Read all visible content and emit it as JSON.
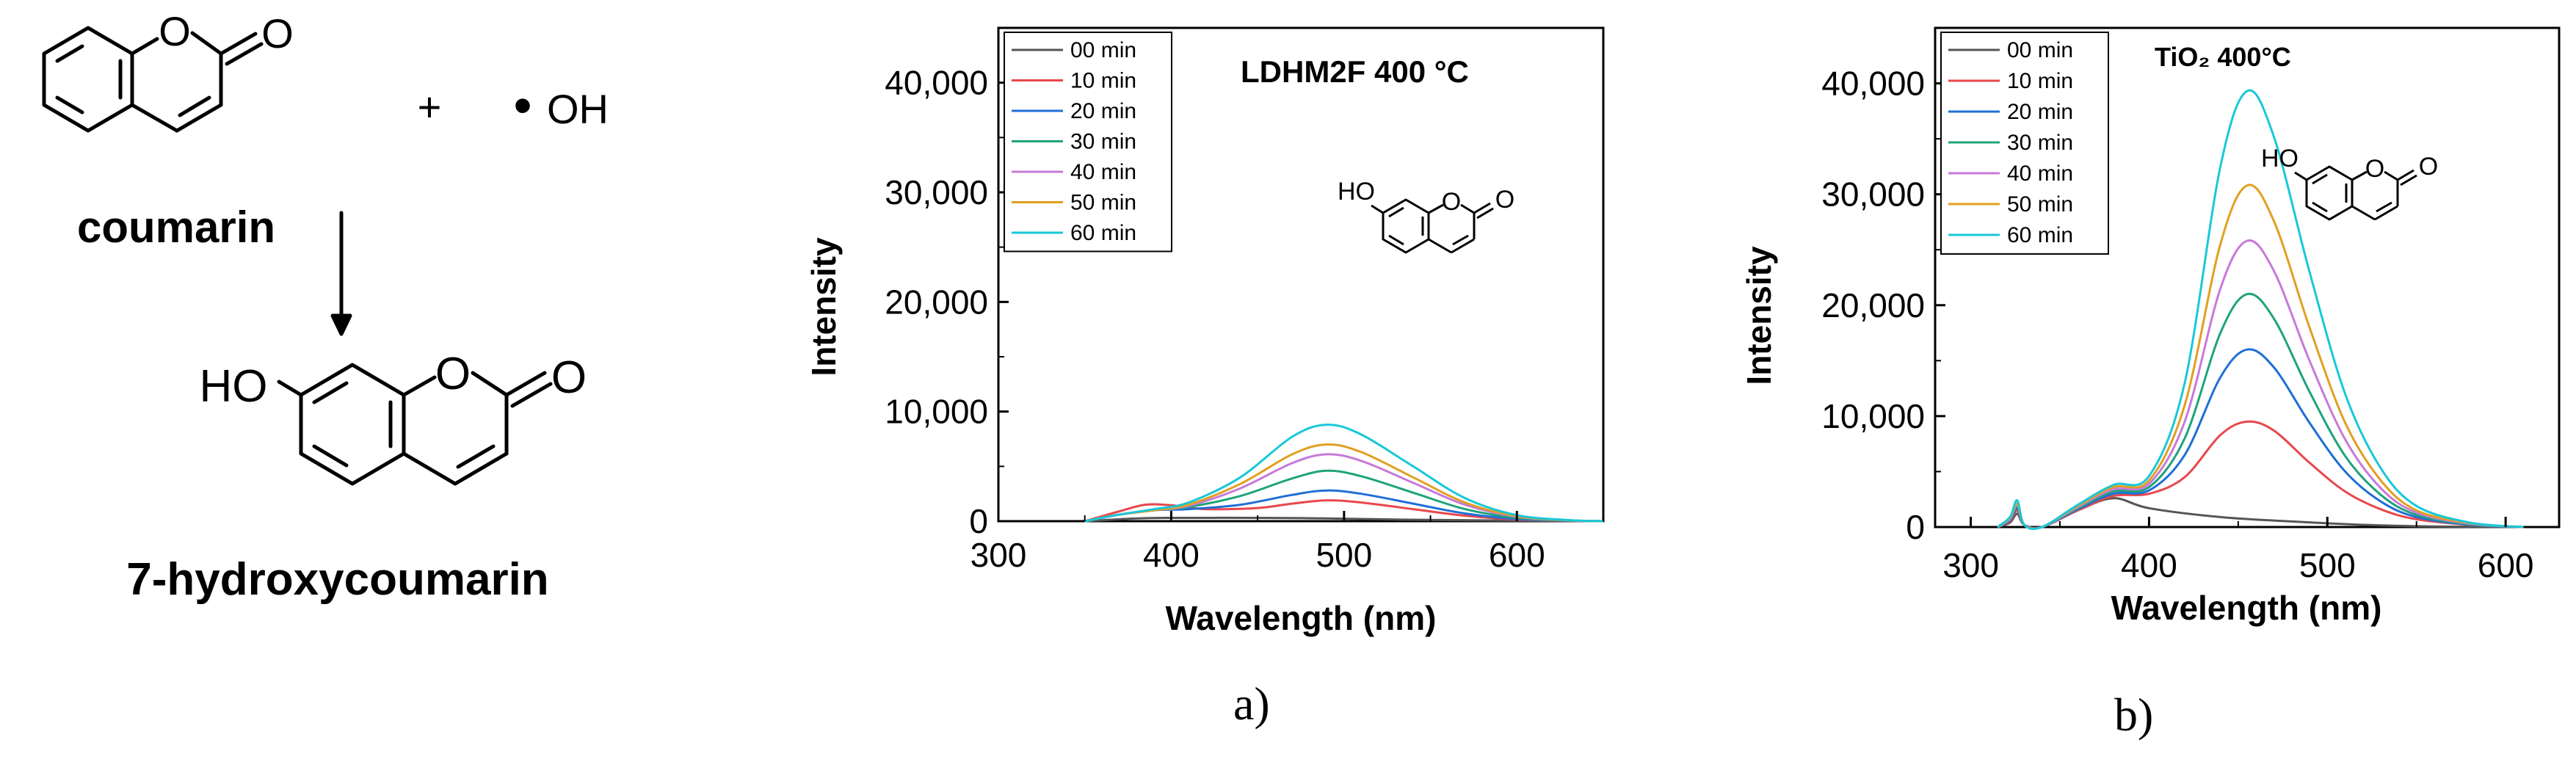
{
  "scheme": {
    "plus_sign": "+",
    "radical_dot": "•",
    "radical_label": "OH",
    "ring_oxygen": "O",
    "carbonyl_oxygen": "O",
    "hydroxyl_label": "HO",
    "reactant_name": "coumarin",
    "product_name": "7-hydroxycoumarin"
  },
  "panel_labels": {
    "a": "a)",
    "b": "b)"
  },
  "inset_molecule": {
    "hydroxyl_label": "HO",
    "ring_oxygen": "O",
    "carbonyl_oxygen": "O"
  },
  "chart_data": [
    {
      "type": "line",
      "title": "LDHM2F 400 °C",
      "xlabel": "Wavelength (nm)",
      "ylabel": "Intensity",
      "xlim": [
        300,
        650
      ],
      "ylim": [
        0,
        45000
      ],
      "x_ticks": [
        300,
        400,
        500,
        600
      ],
      "x_tick_labels": [
        "300",
        "400",
        "500",
        "600"
      ],
      "y_ticks": [
        0,
        10000,
        20000,
        30000,
        40000
      ],
      "y_tick_labels": [
        "0",
        "10,000",
        "20,000",
        "30,000",
        "40,000"
      ],
      "legend_position": "top-left",
      "series": [
        {
          "name": "00 min",
          "color": "#555555",
          "x": [
            350,
            380,
            400,
            450,
            490,
            530,
            600,
            650
          ],
          "y": [
            0,
            250,
            300,
            300,
            250,
            150,
            50,
            0
          ]
        },
        {
          "name": "10 min",
          "color": "#e8474c",
          "x": [
            350,
            370,
            385,
            400,
            420,
            450,
            470,
            490,
            510,
            540,
            570,
            600,
            630,
            650
          ],
          "y": [
            0,
            900,
            1500,
            1450,
            1100,
            1200,
            1600,
            1900,
            1700,
            1100,
            500,
            150,
            30,
            0
          ]
        },
        {
          "name": "20 min",
          "color": "#1f6fd6",
          "x": [
            350,
            370,
            390,
            410,
            440,
            470,
            490,
            510,
            540,
            570,
            600,
            630,
            650
          ],
          "y": [
            0,
            600,
            1000,
            1100,
            1500,
            2400,
            2800,
            2500,
            1600,
            700,
            200,
            40,
            0
          ]
        },
        {
          "name": "30 min",
          "color": "#1fa37a",
          "x": [
            350,
            370,
            390,
            410,
            440,
            470,
            490,
            510,
            540,
            570,
            600,
            630,
            650
          ],
          "y": [
            0,
            600,
            1000,
            1300,
            2300,
            3900,
            4600,
            4100,
            2600,
            1100,
            300,
            60,
            0
          ]
        },
        {
          "name": "40 min",
          "color": "#c77ad9",
          "x": [
            350,
            370,
            390,
            410,
            440,
            470,
            490,
            510,
            540,
            570,
            600,
            630,
            650
          ],
          "y": [
            0,
            600,
            1000,
            1400,
            3000,
            5300,
            6100,
            5500,
            3500,
            1500,
            400,
            80,
            0
          ]
        },
        {
          "name": "50 min",
          "color": "#e0a020",
          "x": [
            350,
            370,
            390,
            410,
            440,
            470,
            490,
            510,
            540,
            570,
            600,
            630,
            650
          ],
          "y": [
            0,
            600,
            1000,
            1500,
            3400,
            6100,
            7000,
            6300,
            4000,
            1700,
            450,
            90,
            0
          ]
        },
        {
          "name": "60 min",
          "color": "#18c8d8",
          "x": [
            350,
            370,
            390,
            410,
            440,
            470,
            490,
            510,
            540,
            570,
            600,
            630,
            650
          ],
          "y": [
            0,
            600,
            1100,
            1700,
            4000,
            7700,
            8800,
            7900,
            5000,
            2100,
            550,
            100,
            0
          ]
        }
      ]
    },
    {
      "type": "line",
      "title": "TiO₂ 400°C",
      "xlabel": "Wavelength (nm)",
      "ylabel": "Intensity",
      "xlim": [
        280,
        630
      ],
      "ylim": [
        0,
        45000
      ],
      "x_ticks": [
        300,
        400,
        500,
        600
      ],
      "x_tick_labels": [
        "300",
        "400",
        "500",
        "600"
      ],
      "y_ticks": [
        0,
        10000,
        20000,
        30000,
        40000
      ],
      "y_tick_labels": [
        "0",
        "10,000",
        "20,000",
        "30,000",
        "40,000"
      ],
      "legend_position": "top-left",
      "series": [
        {
          "name": "00 min",
          "color": "#555555",
          "x": [
            315,
            322,
            326,
            330,
            340,
            360,
            380,
            400,
            440,
            480,
            520,
            560,
            610
          ],
          "y": [
            0,
            400,
            1200,
            200,
            0,
            1500,
            2600,
            1700,
            900,
            500,
            200,
            50,
            0
          ]
        },
        {
          "name": "10 min",
          "color": "#e8474c",
          "x": [
            315,
            322,
            326,
            330,
            340,
            360,
            380,
            400,
            420,
            440,
            455,
            470,
            490,
            510,
            530,
            550,
            580,
            610
          ],
          "y": [
            0,
            500,
            1500,
            200,
            0,
            1500,
            2800,
            3000,
            4500,
            8300,
            9500,
            8700,
            5800,
            3200,
            1600,
            700,
            200,
            0
          ]
        },
        {
          "name": "20 min",
          "color": "#1f6fd6",
          "x": [
            315,
            322,
            326,
            330,
            340,
            360,
            380,
            400,
            420,
            440,
            455,
            470,
            490,
            510,
            530,
            550,
            580,
            610
          ],
          "y": [
            0,
            600,
            1700,
            200,
            0,
            1600,
            3000,
            3300,
            6500,
            13500,
            16000,
            14400,
            9400,
            5000,
            2300,
            900,
            200,
            0
          ]
        },
        {
          "name": "30 min",
          "color": "#1fa37a",
          "x": [
            315,
            322,
            326,
            330,
            340,
            360,
            380,
            400,
            420,
            440,
            455,
            470,
            490,
            510,
            530,
            550,
            580,
            610
          ],
          "y": [
            0,
            700,
            1900,
            200,
            0,
            1700,
            3200,
            3600,
            8000,
            17500,
            21000,
            18800,
            12200,
            6400,
            2900,
            1100,
            250,
            0
          ]
        },
        {
          "name": "40 min",
          "color": "#c77ad9",
          "x": [
            315,
            322,
            326,
            330,
            340,
            360,
            380,
            400,
            420,
            440,
            455,
            470,
            490,
            510,
            530,
            550,
            580,
            610
          ],
          "y": [
            0,
            750,
            2000,
            200,
            0,
            1800,
            3400,
            3900,
            9500,
            21500,
            25800,
            23100,
            15000,
            7900,
            3500,
            1300,
            300,
            0
          ]
        },
        {
          "name": "50 min",
          "color": "#e0a020",
          "x": [
            315,
            322,
            326,
            330,
            340,
            360,
            380,
            400,
            420,
            440,
            455,
            470,
            490,
            510,
            530,
            550,
            580,
            610
          ],
          "y": [
            0,
            800,
            2100,
            200,
            0,
            1900,
            3600,
            4200,
            11000,
            25500,
            30800,
            27600,
            18000,
            9400,
            4200,
            1500,
            350,
            0
          ]
        },
        {
          "name": "60 min",
          "color": "#18c8d8",
          "x": [
            315,
            322,
            326,
            330,
            340,
            360,
            380,
            400,
            420,
            440,
            455,
            470,
            490,
            510,
            530,
            550,
            580,
            610
          ],
          "y": [
            0,
            900,
            2400,
            200,
            0,
            2000,
            3800,
            4600,
            13000,
            32500,
            39300,
            35200,
            23000,
            12000,
            5300,
            1900,
            400,
            0
          ]
        }
      ]
    }
  ]
}
